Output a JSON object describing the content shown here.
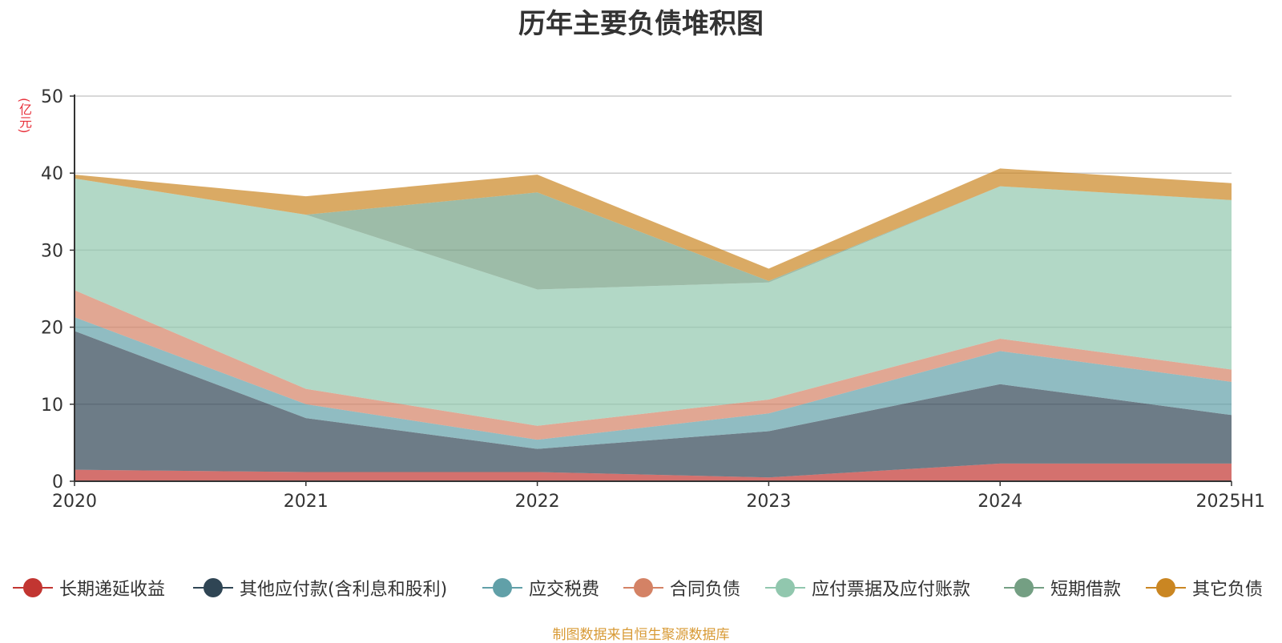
{
  "title": "历年主要负债堆积图",
  "unit": "(亿元)",
  "source": "制图数据来自恒生聚源数据库",
  "chart_data": {
    "type": "area",
    "stacked": true,
    "categories": [
      "2020",
      "2021",
      "2022",
      "2023",
      "2024",
      "2025H1"
    ],
    "ylim": [
      0,
      50
    ],
    "yticks": [
      0,
      10,
      20,
      30,
      40,
      50
    ],
    "grid": true,
    "legend_position": "bottom",
    "series": [
      {
        "name": "长期递延收益",
        "color": "#c23531",
        "values": [
          1.5,
          1.2,
          1.2,
          0.5,
          2.3,
          2.3
        ]
      },
      {
        "name": "其他应付款(含利息和股利)",
        "color": "#2f4554",
        "values": [
          18.0,
          7.0,
          3.0,
          6.0,
          10.3,
          6.3
        ]
      },
      {
        "name": "应交税费",
        "color": "#61a0a8",
        "values": [
          1.8,
          1.8,
          1.2,
          2.3,
          4.3,
          4.3
        ]
      },
      {
        "name": "合同负债",
        "color": "#d48265",
        "values": [
          3.5,
          2.0,
          1.8,
          1.8,
          1.6,
          1.6
        ]
      },
      {
        "name": "应付票据及应付账款",
        "color": "#91c7ae",
        "values": [
          14.5,
          22.6,
          17.7,
          15.2,
          19.8,
          22.0
        ]
      },
      {
        "name": "短期借款",
        "color": "#749f83",
        "values": [
          0,
          0,
          12.6,
          0.2,
          0,
          0
        ]
      },
      {
        "name": "其它负债",
        "color": "#ca8622",
        "values": [
          0.5,
          2.4,
          2.3,
          1.6,
          2.3,
          2.2
        ]
      }
    ]
  }
}
